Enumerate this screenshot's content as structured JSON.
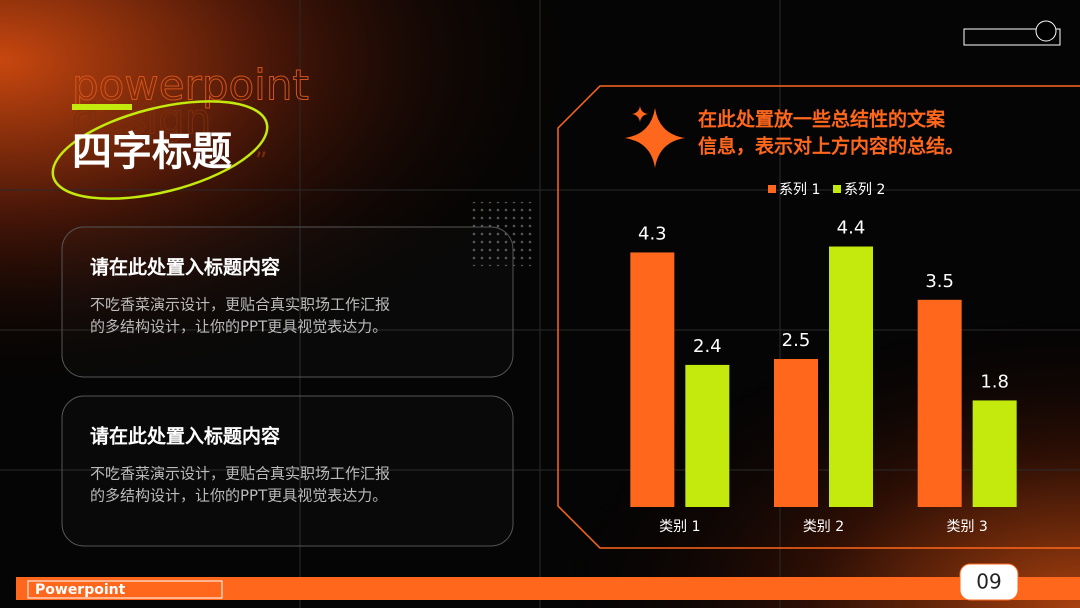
{
  "header": {
    "bg_text": [
      "powerpoint",
      "design"
    ],
    "title": "四字标题"
  },
  "cards": [
    {
      "heading": "请在此处置入标题内容",
      "body_lines": [
        "不吃香菜演示设计，更贴合真实职场工作汇报",
        "的多结构设计，让你的PPT更具视觉表达力。"
      ]
    },
    {
      "heading": "请在此处置入标题内容",
      "body_lines": [
        "不吃香菜演示设计，更贴合真实职场工作汇报",
        "的多结构设计，让你的PPT更具视觉表达力。"
      ]
    }
  ],
  "summary_lines": [
    "在此处置放一些总结性的文案",
    "信息，表示对上方内容的总结。"
  ],
  "footer": {
    "brand": "Powerpoint",
    "page_number": "09"
  },
  "chart_data": {
    "type": "bar",
    "categories": [
      "类别 1",
      "类别 2",
      "类别 3"
    ],
    "series": [
      {
        "name": "系列 1",
        "color": "#ff671d",
        "values": [
          4.3,
          2.5,
          3.5
        ]
      },
      {
        "name": "系列 2",
        "color": "#c3ea0c",
        "values": [
          2.4,
          4.4,
          1.8
        ]
      }
    ],
    "ylim": [
      0,
      5
    ],
    "legend": "top"
  }
}
